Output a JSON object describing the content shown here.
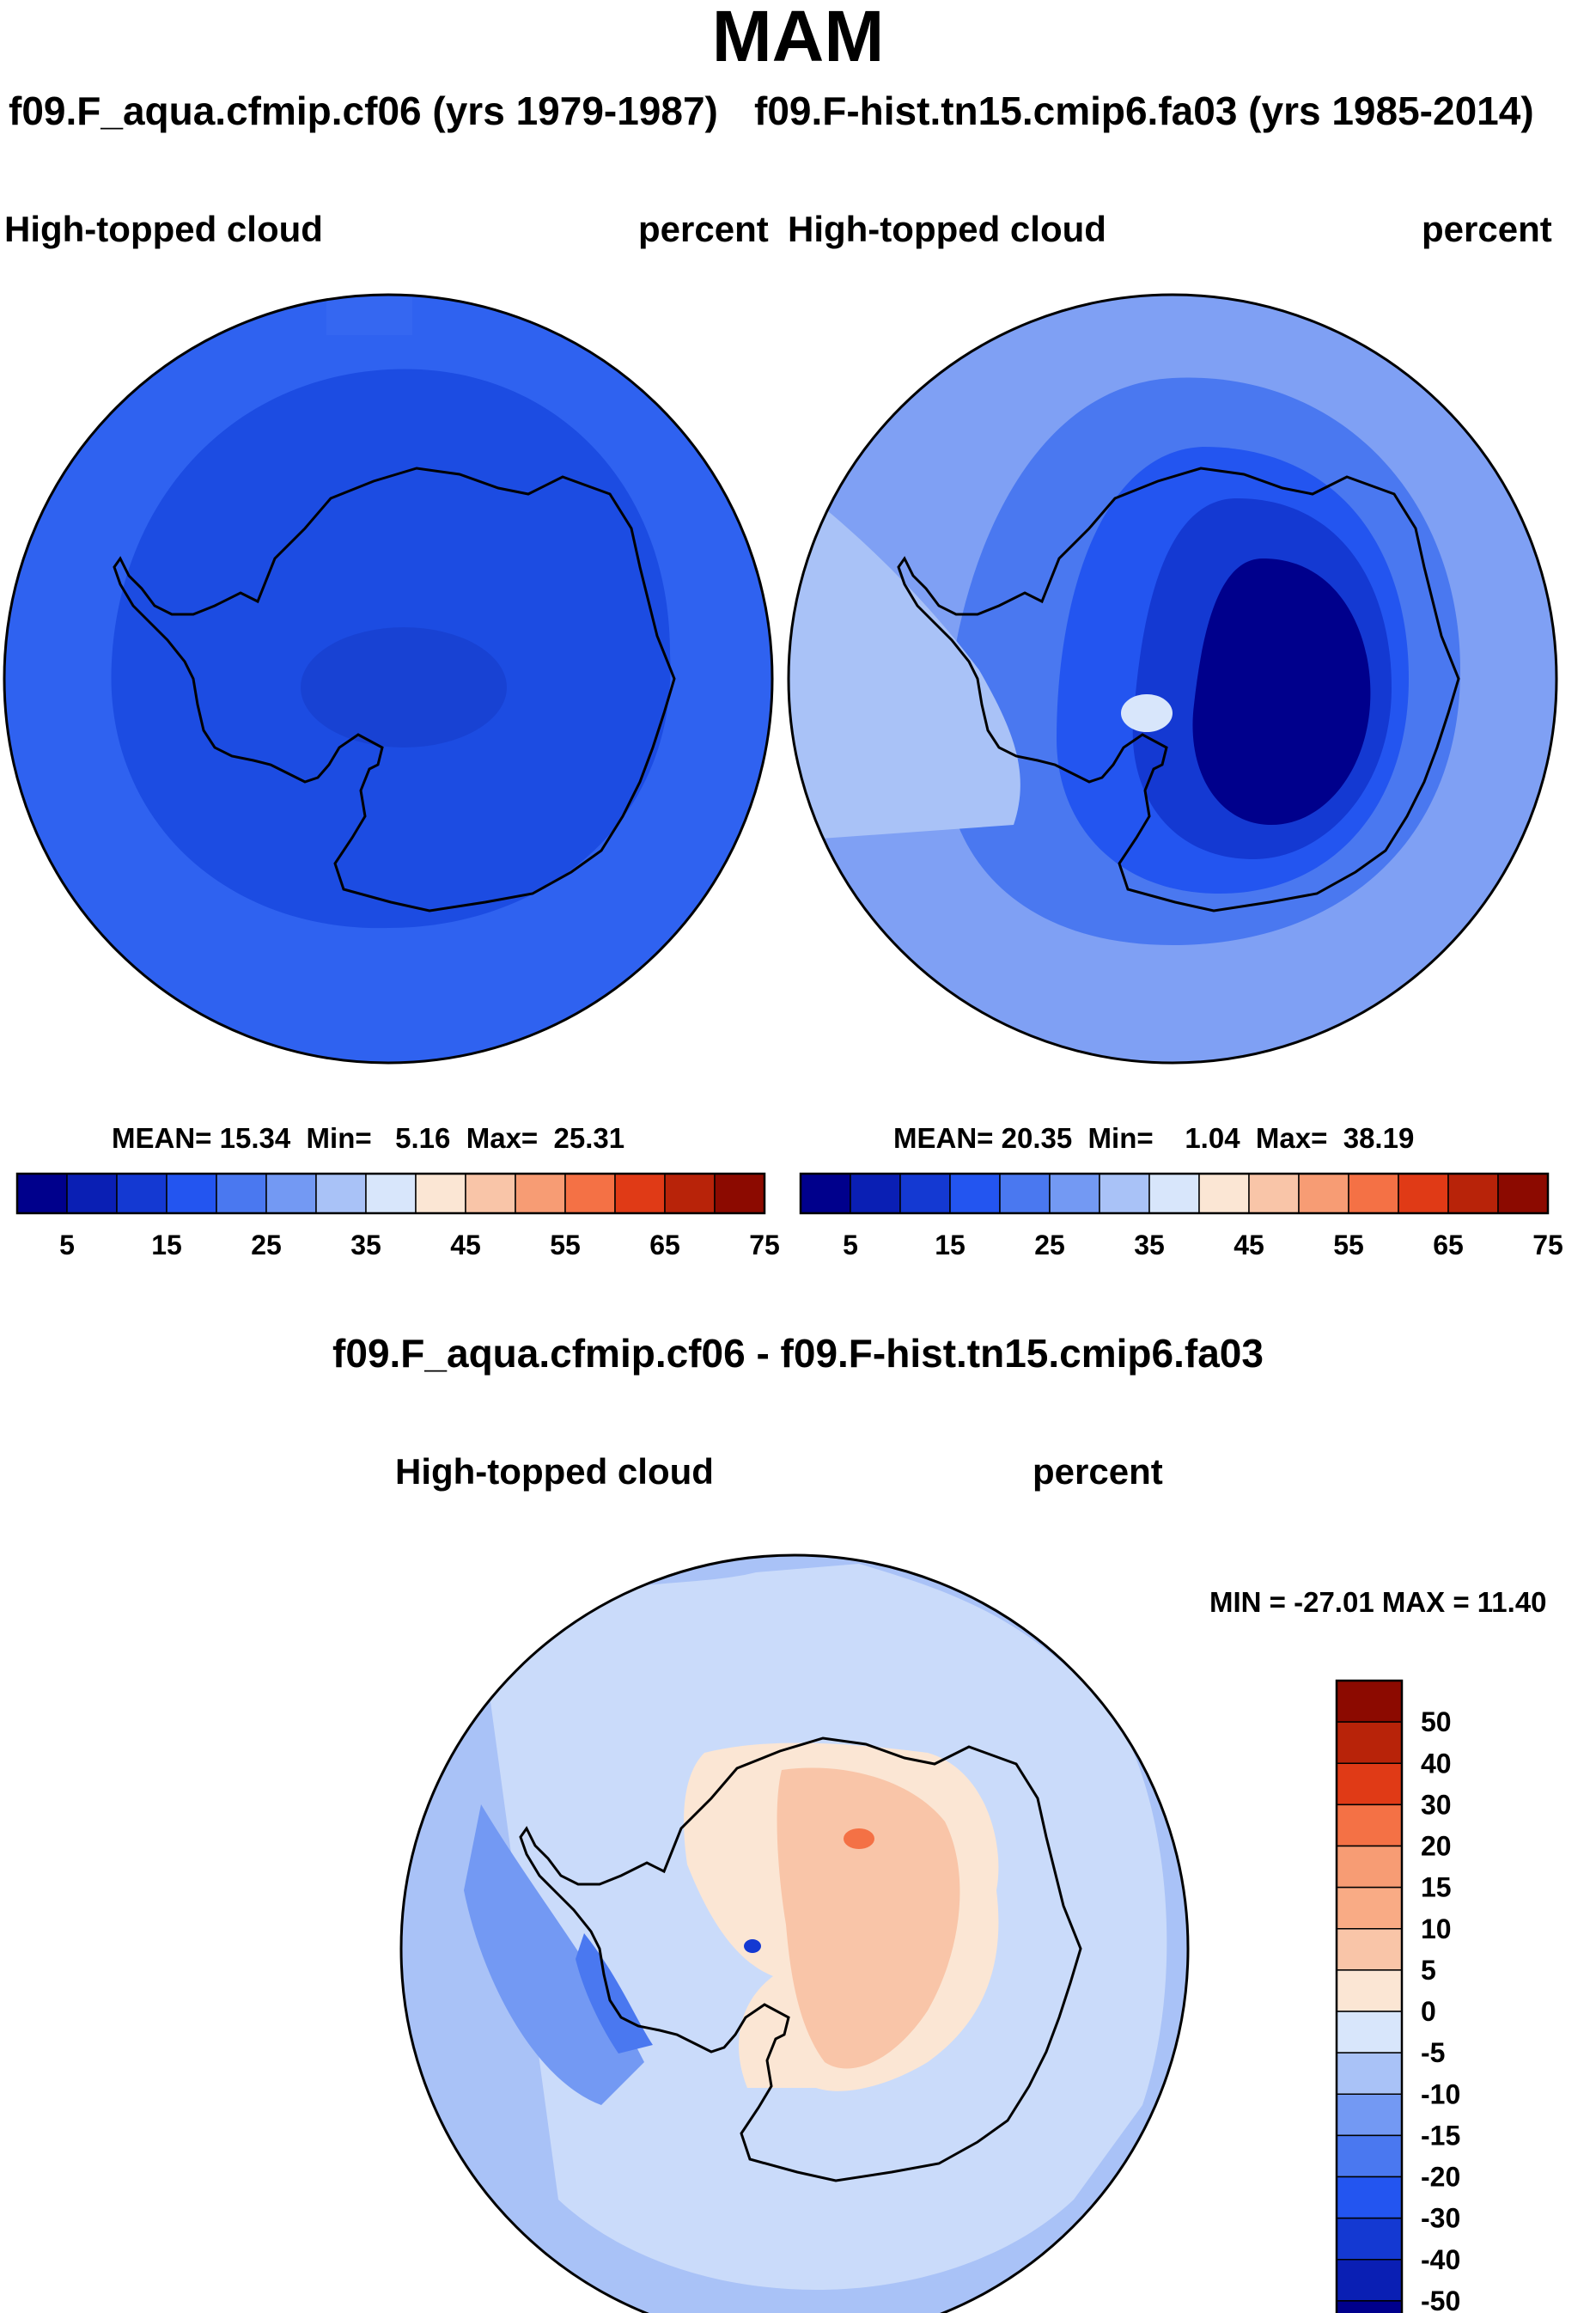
{
  "title": "MAM",
  "panels": [
    {
      "case_label": "f09.F_aqua.cfmip.cf06 (yrs 1979-1987)",
      "variable": "High-topped cloud",
      "units": "percent",
      "stats": {
        "mean_label": "MEAN=",
        "mean": "15.34",
        "min_label": "Min=",
        "min": "5.16",
        "max_label": "Max=",
        "max": "25.31"
      }
    },
    {
      "case_label": "f09.F-hist.tn15.cmip6.fa03 (yrs 1985-2014)",
      "variable": "High-topped cloud",
      "units": "percent",
      "stats": {
        "mean_label": "MEAN=",
        "mean": "20.35",
        "min_label": "Min=",
        "min": "1.04",
        "max_label": "Max=",
        "max": "38.19"
      }
    }
  ],
  "colorbar": {
    "ticks": [
      "5",
      "15",
      "25",
      "35",
      "45",
      "55",
      "65",
      "75"
    ],
    "colors": [
      "#00008c",
      "#0a1fb4",
      "#1439d2",
      "#2355f0",
      "#4a78f0",
      "#7399f3",
      "#a9c2f7",
      "#d8e6fb",
      "#fbe6d4",
      "#f9c5a8",
      "#f79c74",
      "#f47145",
      "#e03a16",
      "#b82309",
      "#8c0a00"
    ]
  },
  "difference": {
    "title": "f09.F_aqua.cfmip.cf06 - f09.F-hist.tn15.cmip6.fa03",
    "variable": "High-topped cloud",
    "units": "percent",
    "minmax": "MIN = -27.01 MAX =  11.40",
    "levels": [
      "50",
      "40",
      "30",
      "20",
      "15",
      "10",
      "5",
      "0",
      "-5",
      "-10",
      "-15",
      "-20",
      "-30",
      "-40",
      "-50"
    ],
    "colors": [
      "#8c0a00",
      "#b82309",
      "#e03a16",
      "#f47145",
      "#f79c74",
      "#f9ab85",
      "#f9c5a8",
      "#fbe6d4",
      "#d8e6fb",
      "#a9c2f7",
      "#7399f3",
      "#4a78f0",
      "#2355f0",
      "#1439d2",
      "#0a1fb4",
      "#00008c"
    ]
  }
}
